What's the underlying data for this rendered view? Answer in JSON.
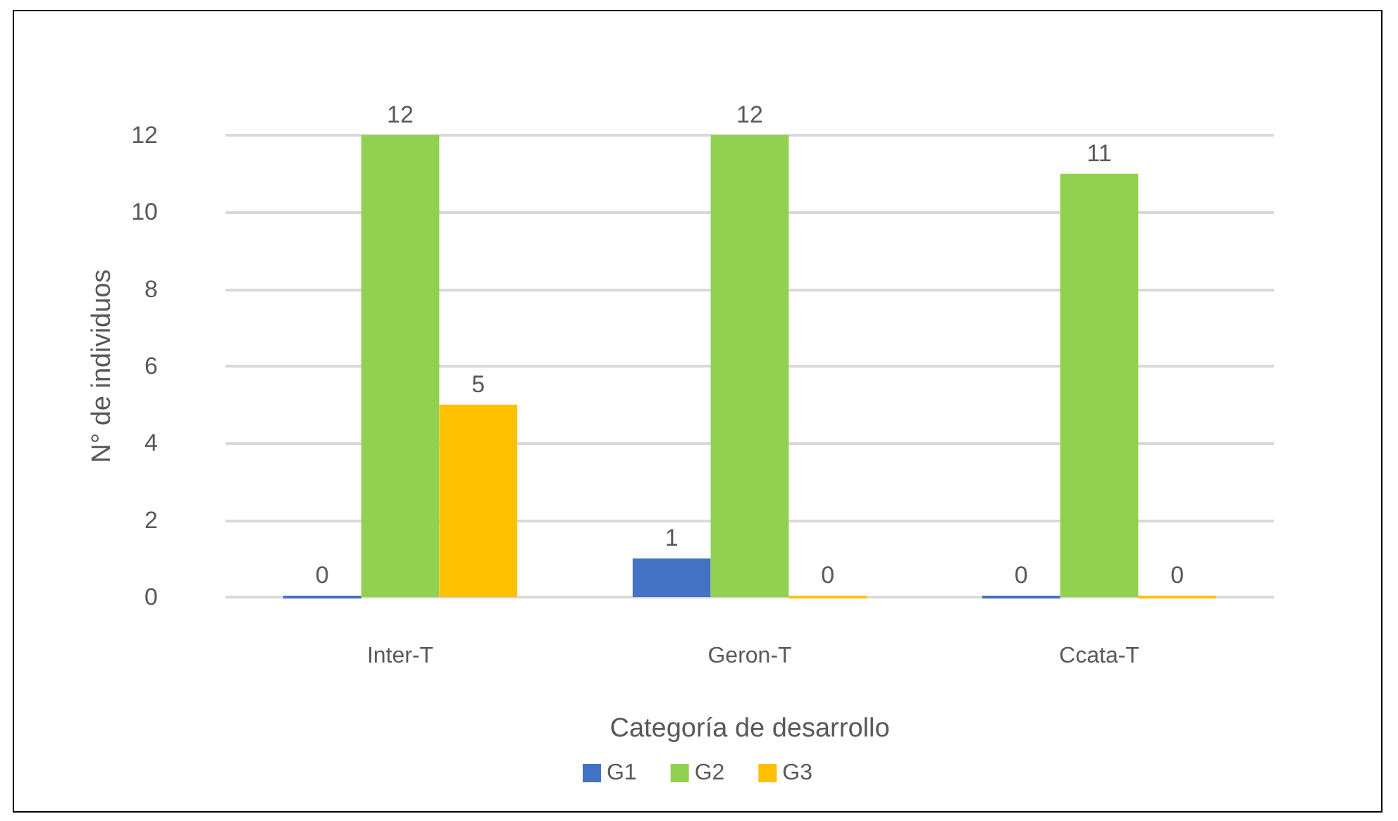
{
  "chart_data": {
    "type": "bar",
    "xlabel": "Categoría de desarrollo",
    "ylabel": "N° de individuos",
    "categories": [
      "Inter-T",
      "Geron-T",
      "Ccata-T"
    ],
    "series": [
      {
        "name": "G1",
        "color": "#4472c4",
        "values": [
          0,
          1,
          0
        ]
      },
      {
        "name": "G2",
        "color": "#92d050",
        "values": [
          12,
          12,
          11
        ]
      },
      {
        "name": "G3",
        "color": "#ffc000",
        "values": [
          5,
          0,
          0
        ]
      }
    ],
    "ylim": [
      0,
      12
    ],
    "yticks": [
      0,
      2,
      4,
      6,
      8,
      10,
      12
    ],
    "grid": "y",
    "legend": "bottom",
    "data_labels": true
  }
}
